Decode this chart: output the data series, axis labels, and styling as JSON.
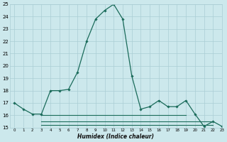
{
  "xlabel": "Humidex (Indice chaleur)",
  "bg_color": "#cce8ec",
  "grid_color": "#aacdd4",
  "line_color": "#1a6b5a",
  "x_main": [
    0,
    1,
    2,
    3,
    4,
    5,
    6,
    7,
    8,
    9,
    10,
    11,
    12,
    13,
    14,
    15,
    16,
    17,
    18,
    19,
    20,
    21,
    22,
    23
  ],
  "y_main": [
    17.0,
    16.5,
    16.1,
    16.1,
    18.0,
    18.0,
    18.1,
    19.5,
    22.0,
    23.8,
    24.5,
    25.0,
    23.8,
    19.2,
    16.5,
    16.7,
    17.2,
    16.7,
    16.7,
    17.2,
    16.1,
    15.1,
    15.5,
    15.1
  ],
  "x_line2_start": 3,
  "x_line2_end": 19,
  "y_line2": 16.0,
  "x_line3_start": 3,
  "x_line3_end": 22,
  "y_line3": 15.5,
  "x_line4_start": 3,
  "x_line4_end": 22,
  "y_line4": 15.2,
  "ylim": [
    15,
    25
  ],
  "xlim": [
    -0.5,
    23
  ],
  "yticks": [
    15,
    16,
    17,
    18,
    19,
    20,
    21,
    22,
    23,
    24,
    25
  ],
  "xticks": [
    0,
    1,
    2,
    3,
    4,
    5,
    6,
    7,
    8,
    9,
    10,
    11,
    12,
    13,
    14,
    15,
    16,
    17,
    18,
    19,
    20,
    21,
    22,
    23
  ]
}
